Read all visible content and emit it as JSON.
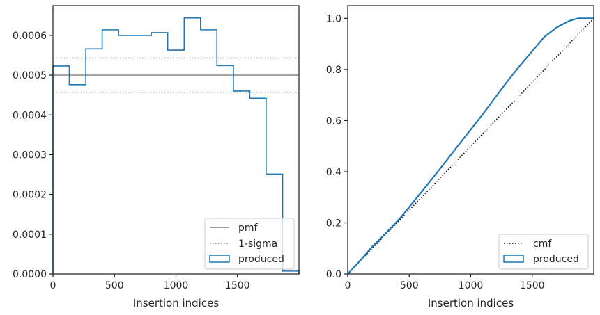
{
  "chart_data": [
    {
      "type": "histogram-step",
      "xlabel": "Insertion indices",
      "ylabel": "",
      "xlim": [
        0,
        2000
      ],
      "ylim": [
        0,
        0.000675
      ],
      "xticks": [
        0,
        500,
        1000,
        1500
      ],
      "xtick_labels": [
        "0",
        "500",
        "1000",
        "1500"
      ],
      "yticks": [
        0,
        0.0001,
        0.0002,
        0.0003,
        0.0004,
        0.0005,
        0.0006
      ],
      "ytick_labels": [
        "0.0000",
        "0.0001",
        "0.0002",
        "0.0003",
        "0.0004",
        "0.0005",
        "0.0006"
      ],
      "bin_edges": [
        0,
        133,
        267,
        400,
        533,
        667,
        800,
        933,
        1067,
        1200,
        1333,
        1467,
        1600,
        1733,
        1867,
        2000
      ],
      "values": [
        0.000523,
        0.000476,
        0.000566,
        0.000614,
        0.0006,
        0.0006,
        0.000607,
        0.000563,
        0.000644,
        0.000614,
        0.000524,
        0.00046,
        0.000442,
        0.000251,
        7.2e-06
      ],
      "hlines": [
        {
          "label": "pmf",
          "y": 0.0005,
          "style": "solid",
          "color": "#7f7f7f"
        },
        {
          "label": "1-sigma",
          "y": 0.000543,
          "style": "dotted",
          "color": "#7f7f7f"
        },
        {
          "label": "1-sigma",
          "y": 0.000457,
          "style": "dotted",
          "color": "#7f7f7f"
        }
      ],
      "series": [
        {
          "name": "produced",
          "color": "#1f77b4"
        }
      ],
      "legend": {
        "position": "lower right",
        "entries": [
          "pmf",
          "1-sigma",
          "produced"
        ]
      }
    },
    {
      "type": "line",
      "xlabel": "Insertion indices",
      "ylabel": "",
      "xlim": [
        0,
        2000
      ],
      "ylim": [
        0,
        1.05
      ],
      "xticks": [
        0,
        500,
        1000,
        1500
      ],
      "xtick_labels": [
        "0",
        "500",
        "1000",
        "1500"
      ],
      "yticks": [
        0,
        0.2,
        0.4,
        0.6,
        0.8,
        1.0
      ],
      "ytick_labels": [
        "0.0",
        "0.2",
        "0.4",
        "0.6",
        "0.8",
        "1.0"
      ],
      "series": [
        {
          "name": "cmf",
          "style": "dotted",
          "color": "#000000",
          "x": [
            0,
            2000
          ],
          "y": [
            0,
            1.0
          ]
        },
        {
          "name": "produced",
          "style": "step",
          "color": "#1f77b4",
          "x": [
            0,
            100,
            200,
            300,
            350,
            400,
            450,
            500,
            600,
            700,
            800,
            900,
            1000,
            1100,
            1200,
            1300,
            1400,
            1500,
            1600,
            1700,
            1800,
            1870,
            1900,
            2000
          ],
          "y": [
            0,
            0.052,
            0.107,
            0.155,
            0.18,
            0.205,
            0.232,
            0.262,
            0.321,
            0.381,
            0.442,
            0.504,
            0.565,
            0.626,
            0.691,
            0.755,
            0.815,
            0.872,
            0.928,
            0.965,
            0.99,
            1.0,
            1.0,
            1.0
          ]
        }
      ],
      "legend": {
        "position": "lower right",
        "entries": [
          "cmf",
          "produced"
        ]
      }
    }
  ]
}
